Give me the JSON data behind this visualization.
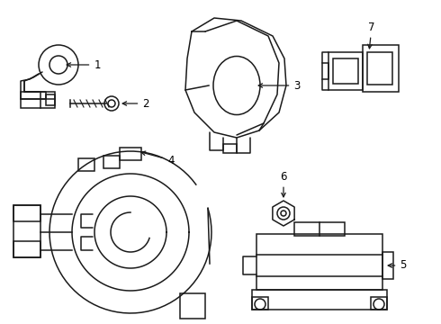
{
  "background_color": "#ffffff",
  "line_color": "#1a1a1a",
  "lw": 1.1,
  "figsize": [
    4.9,
    3.6
  ],
  "dpi": 100
}
